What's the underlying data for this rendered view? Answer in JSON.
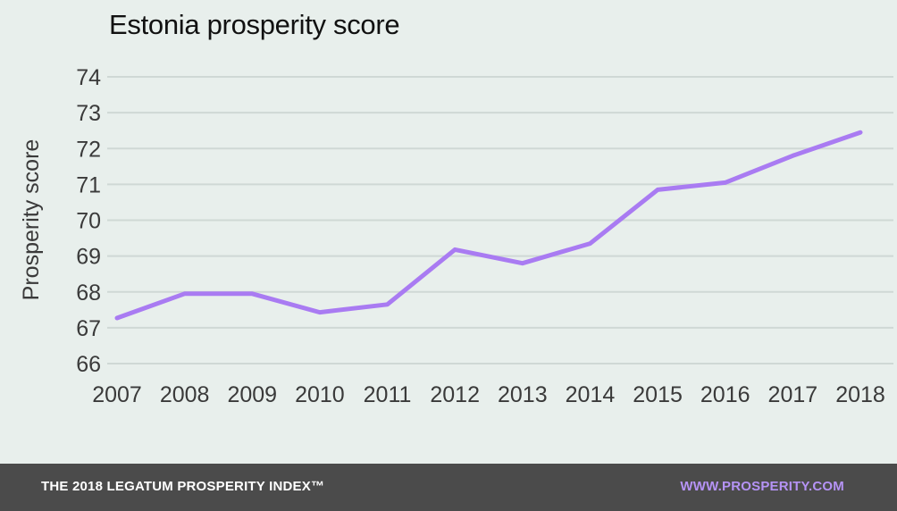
{
  "chart_data": {
    "type": "line",
    "title": "Estonia prosperity score",
    "xlabel": "",
    "ylabel": "Prosperity score",
    "x": [
      "2007",
      "2008",
      "2009",
      "2010",
      "2011",
      "2012",
      "2013",
      "2014",
      "2015",
      "2016",
      "2017",
      "2018"
    ],
    "series": [
      {
        "values": [
          67.27,
          67.95,
          67.95,
          67.43,
          67.65,
          69.18,
          68.8,
          69.35,
          70.85,
          71.05,
          71.8,
          72.45
        ],
        "color": "#a97bf2"
      }
    ],
    "ylim": [
      66,
      74
    ],
    "yticks": [
      66,
      67,
      68,
      69,
      70,
      71,
      72,
      73,
      74
    ],
    "grid": true,
    "legend": "none"
  },
  "footer": {
    "left": "THE 2018 LEGATUM PROSPERITY INDEX™",
    "right": "WWW.PROSPERITY.COM"
  },
  "colors": {
    "background": "#e8efec",
    "gridline": "#cfd8d5",
    "footer_bg": "#4b4b4b",
    "accent": "#b593f5"
  }
}
